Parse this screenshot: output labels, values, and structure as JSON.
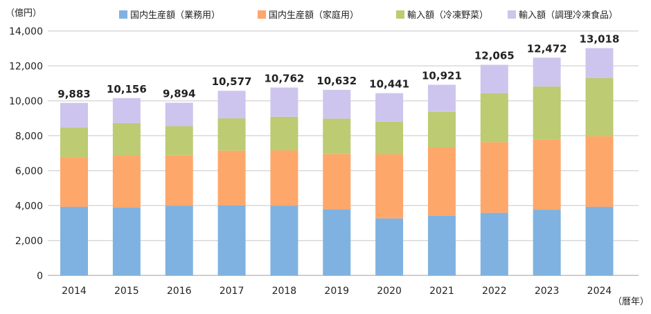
{
  "chart_data": {
    "type": "bar",
    "stacked": true,
    "y_unit_label": "（億円）",
    "x_unit_label": "（暦年）",
    "ylim": [
      0,
      14000
    ],
    "yticks": [
      0,
      2000,
      4000,
      6000,
      8000,
      10000,
      12000,
      14000
    ],
    "ytick_labels": [
      "0",
      "2,000",
      "4,000",
      "6,000",
      "8,000",
      "10,000",
      "12,000",
      "14,000"
    ],
    "grid": true,
    "legend_position": "top-right",
    "categories": [
      "2014",
      "2015",
      "2016",
      "2017",
      "2018",
      "2019",
      "2020",
      "2021",
      "2022",
      "2023",
      "2024"
    ],
    "series": [
      {
        "name": "国内生産額（業務用）",
        "color": "#7fb2e0",
        "values": [
          3930,
          3890,
          3990,
          4020,
          3990,
          3790,
          3270,
          3430,
          3590,
          3770,
          3930
        ]
      },
      {
        "name": "国内生産額（家庭用）",
        "color": "#fea76a",
        "values": [
          2850,
          2970,
          2880,
          3130,
          3170,
          3160,
          3670,
          3910,
          4040,
          4010,
          4040
        ]
      },
      {
        "name": "輸入額（冷凍野菜）",
        "color": "#bdcb72",
        "values": [
          1690,
          1870,
          1680,
          1850,
          1930,
          2030,
          1870,
          2030,
          2800,
          3040,
          3330
        ]
      },
      {
        "name": "輸入額（調理冷凍食品）",
        "color": "#cec5ee",
        "values": [
          1413,
          1426,
          1344,
          1577,
          1672,
          1652,
          1631,
          1551,
          1635,
          1652,
          1718
        ]
      }
    ],
    "totals": [
      9883,
      10156,
      9894,
      10577,
      10762,
      10632,
      10441,
      10921,
      12065,
      12472,
      13018
    ],
    "total_labels": [
      "9,883",
      "10,156",
      "9,894",
      "10,577",
      "10,762",
      "10,632",
      "10,441",
      "10,921",
      "12,065",
      "12,472",
      "13,018"
    ]
  }
}
